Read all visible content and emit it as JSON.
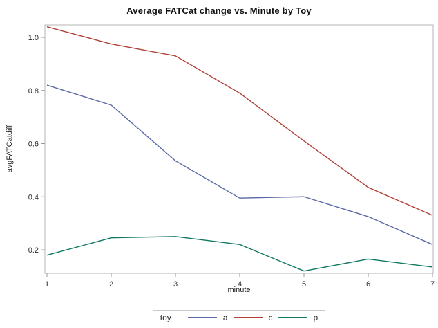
{
  "title": "Average FATCat change vs. Minute by Toy",
  "chart_data": {
    "type": "line",
    "title": "Average FATCat change vs. Minute by Toy",
    "xlabel": "minute",
    "ylabel": "avgFATCatdiff",
    "x": [
      1,
      2,
      3,
      4,
      5,
      6,
      7
    ],
    "x_ticks": [
      "1",
      "2",
      "3",
      "4",
      "5",
      "6",
      "7"
    ],
    "y_ticks": [
      0.2,
      0.4,
      0.6,
      0.8,
      1.0
    ],
    "y_tick_labels": [
      "0.2",
      "0.4",
      "0.6",
      "0.8",
      "1.0"
    ],
    "xlim": [
      1,
      7
    ],
    "ylim": [
      0.112,
      1.047
    ],
    "grid": false,
    "legend_position": "bottom",
    "legend_title": "toy",
    "series": [
      {
        "name": "a",
        "color": "#5a68a5",
        "values": [
          0.82,
          0.745,
          0.535,
          0.395,
          0.4,
          0.325,
          0.22
        ]
      },
      {
        "name": "c",
        "color": "#af4136",
        "values": [
          1.04,
          0.975,
          0.93,
          0.79,
          0.61,
          0.435,
          0.33
        ]
      },
      {
        "name": "p",
        "color": "#117864",
        "values": [
          0.18,
          0.245,
          0.25,
          0.22,
          0.12,
          0.165,
          0.135
        ]
      }
    ],
    "frame_color": "#b4b4b4",
    "tick_color": "#9a9a9a"
  }
}
